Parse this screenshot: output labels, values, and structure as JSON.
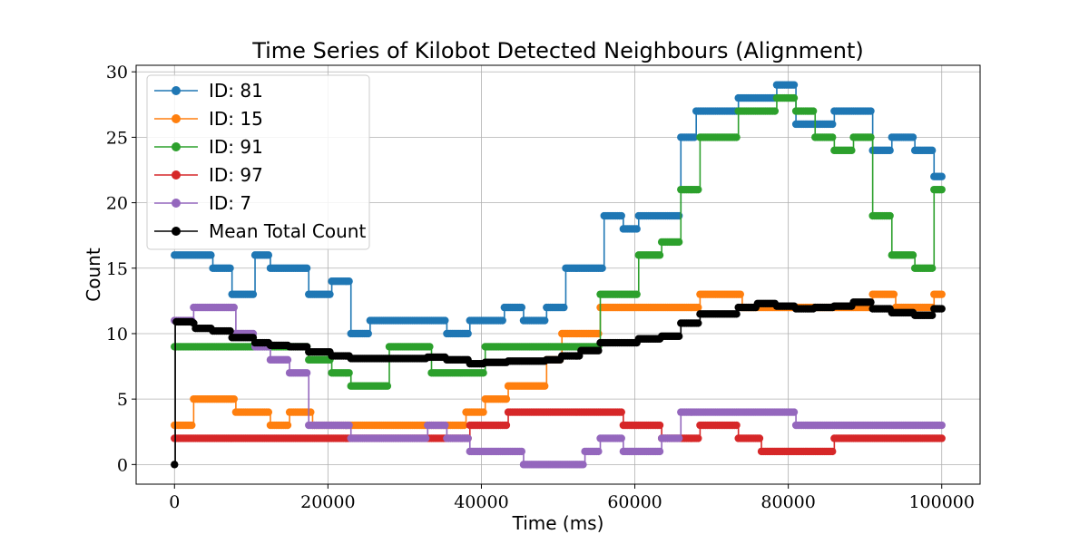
{
  "chart_data": {
    "type": "line",
    "title": "Time Series of Kilobot Detected Neighbours (Alignment)",
    "xlabel": "Time (ms)",
    "ylabel": "Count",
    "xlim": [
      -5000,
      105000
    ],
    "ylim": [
      -1.5,
      30.5
    ],
    "xticks": [
      0,
      20000,
      40000,
      60000,
      80000,
      100000
    ],
    "xtick_labels": [
      "0",
      "20000",
      "40000",
      "60000",
      "80000",
      "100000"
    ],
    "yticks": [
      0,
      5,
      10,
      15,
      20,
      25,
      30
    ],
    "ytick_labels": [
      "0",
      "5",
      "10",
      "15",
      "20",
      "25",
      "30"
    ],
    "grid": true,
    "legend_position": "upper-left",
    "series": [
      {
        "name": "ID: 81",
        "label": "ID: 81",
        "color": "#1f77b4",
        "steps": [
          [
            0,
            16
          ],
          [
            5000,
            15
          ],
          [
            7500,
            13
          ],
          [
            10500,
            16
          ],
          [
            12500,
            15
          ],
          [
            17500,
            13
          ],
          [
            20500,
            14
          ],
          [
            23000,
            10
          ],
          [
            25500,
            11
          ],
          [
            35500,
            10
          ],
          [
            38500,
            11
          ],
          [
            43000,
            12
          ],
          [
            45500,
            11
          ],
          [
            48500,
            12
          ],
          [
            51000,
            15
          ],
          [
            56000,
            19
          ],
          [
            58500,
            18
          ],
          [
            60500,
            19
          ],
          [
            66000,
            25
          ],
          [
            68000,
            27
          ],
          [
            73500,
            28
          ],
          [
            78500,
            29
          ],
          [
            81000,
            26
          ],
          [
            86000,
            27
          ],
          [
            91000,
            24
          ],
          [
            93500,
            25
          ],
          [
            96500,
            24
          ],
          [
            99000,
            22
          ],
          [
            100000,
            22
          ]
        ]
      },
      {
        "name": "ID: 15",
        "label": "ID: 15",
        "color": "#ff7f0e",
        "steps": [
          [
            0,
            3
          ],
          [
            2500,
            5
          ],
          [
            8000,
            4
          ],
          [
            12500,
            3
          ],
          [
            15000,
            4
          ],
          [
            18000,
            3
          ],
          [
            38000,
            4
          ],
          [
            40500,
            5
          ],
          [
            43500,
            6
          ],
          [
            48500,
            8
          ],
          [
            50500,
            10
          ],
          [
            55500,
            12
          ],
          [
            60500,
            12
          ],
          [
            68500,
            13
          ],
          [
            74000,
            12
          ],
          [
            91000,
            13
          ],
          [
            94000,
            12
          ],
          [
            99000,
            13
          ],
          [
            100000,
            13
          ]
        ]
      },
      {
        "name": "ID: 91",
        "label": "ID: 91",
        "color": "#2ca02c",
        "steps": [
          [
            0,
            9
          ],
          [
            12500,
            9
          ],
          [
            17500,
            8
          ],
          [
            20500,
            7
          ],
          [
            23000,
            6
          ],
          [
            28000,
            9
          ],
          [
            33500,
            7
          ],
          [
            40500,
            9
          ],
          [
            55500,
            13
          ],
          [
            60500,
            16
          ],
          [
            63500,
            17
          ],
          [
            66000,
            21
          ],
          [
            68500,
            25
          ],
          [
            73500,
            27
          ],
          [
            78500,
            28
          ],
          [
            81000,
            27
          ],
          [
            83500,
            25
          ],
          [
            86000,
            24
          ],
          [
            88500,
            25
          ],
          [
            91000,
            19
          ],
          [
            93500,
            16
          ],
          [
            96500,
            15
          ],
          [
            99000,
            21
          ],
          [
            100000,
            21
          ]
        ]
      },
      {
        "name": "ID: 97",
        "label": "ID: 97",
        "color": "#d62728",
        "steps": [
          [
            0,
            2
          ],
          [
            36000,
            2
          ],
          [
            38500,
            3
          ],
          [
            43500,
            4
          ],
          [
            58500,
            3
          ],
          [
            63500,
            2
          ],
          [
            68500,
            3
          ],
          [
            73500,
            2
          ],
          [
            76500,
            1
          ],
          [
            86000,
            2
          ],
          [
            100000,
            2
          ]
        ]
      },
      {
        "name": "ID: 7",
        "label": "ID: 7",
        "color": "#9467bd",
        "steps": [
          [
            0,
            11
          ],
          [
            2500,
            12
          ],
          [
            8000,
            10
          ],
          [
            10500,
            9
          ],
          [
            12500,
            8
          ],
          [
            15000,
            7
          ],
          [
            17500,
            3
          ],
          [
            23000,
            2
          ],
          [
            33000,
            3
          ],
          [
            35500,
            2
          ],
          [
            38500,
            1
          ],
          [
            45500,
            0
          ],
          [
            53500,
            1
          ],
          [
            55500,
            2
          ],
          [
            58500,
            1
          ],
          [
            63500,
            2
          ],
          [
            66000,
            4
          ],
          [
            81000,
            3
          ],
          [
            100000,
            3
          ]
        ]
      },
      {
        "name": "Mean Total Count",
        "label": "Mean Total Count",
        "color": "#000000",
        "steps": [
          [
            0,
            0
          ],
          [
            100,
            10.9
          ],
          [
            2500,
            10.8
          ],
          [
            2600,
            10.4
          ],
          [
            5000,
            10.2
          ],
          [
            7500,
            9.7
          ],
          [
            10500,
            9.3
          ],
          [
            12500,
            9.1
          ],
          [
            15000,
            9.0
          ],
          [
            17500,
            8.6
          ],
          [
            20500,
            8.3
          ],
          [
            23000,
            8.1
          ],
          [
            28000,
            8.1
          ],
          [
            33000,
            8.2
          ],
          [
            35500,
            8.0
          ],
          [
            38500,
            7.7
          ],
          [
            40500,
            7.8
          ],
          [
            43500,
            7.9
          ],
          [
            48500,
            8.0
          ],
          [
            50500,
            8.3
          ],
          [
            53000,
            8.7
          ],
          [
            55500,
            9.3
          ],
          [
            60500,
            9.6
          ],
          [
            63500,
            9.8
          ],
          [
            66000,
            10.8
          ],
          [
            68500,
            11.5
          ],
          [
            73500,
            12.0
          ],
          [
            76000,
            12.3
          ],
          [
            78500,
            12.1
          ],
          [
            81000,
            11.9
          ],
          [
            83500,
            12.0
          ],
          [
            86000,
            12.1
          ],
          [
            88500,
            12.4
          ],
          [
            91000,
            11.9
          ],
          [
            93500,
            11.6
          ],
          [
            96500,
            11.4
          ],
          [
            99000,
            11.9
          ],
          [
            100000,
            11.9
          ]
        ]
      }
    ]
  }
}
